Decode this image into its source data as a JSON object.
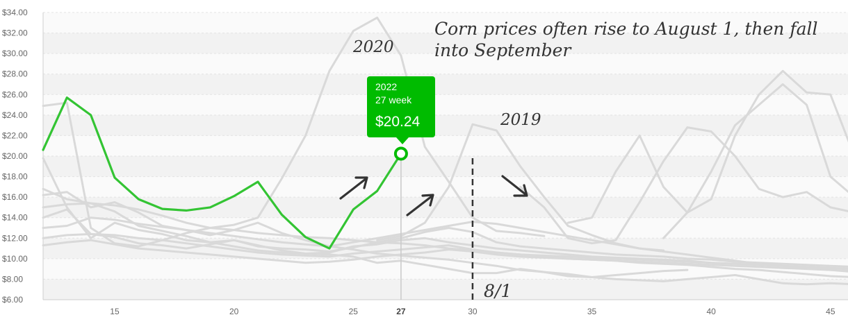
{
  "chart_data": {
    "type": "line",
    "x_ticks": [
      15,
      20,
      25,
      27,
      30,
      35,
      40,
      45
    ],
    "x_tick_bold": 27,
    "xlim": [
      12,
      45.5
    ],
    "ylim": [
      6,
      34
    ],
    "y_ticks": [
      "$6.00",
      "$8.00",
      "$10.00",
      "$12.00",
      "$14.00",
      "$16.00",
      "$18.00",
      "$20.00",
      "$22.00",
      "$24.00",
      "$26.00",
      "$28.00",
      "$30.00",
      "$32.00",
      "$34.00"
    ],
    "highlight_series": {
      "name": "2022",
      "color": "#33c433",
      "x": [
        12,
        13,
        14,
        15,
        16,
        17,
        18,
        19,
        20,
        21,
        22,
        23,
        24,
        25,
        26,
        27
      ],
      "values": [
        20.6,
        25.7,
        24.0,
        17.9,
        15.8,
        14.85,
        14.7,
        15.0,
        16.1,
        17.5,
        14.3,
        12.1,
        11.0,
        14.8,
        16.6,
        20.24
      ]
    },
    "background_series": [
      {
        "name": "2020",
        "x": [
          12,
          13,
          14,
          15,
          16,
          17,
          18,
          19,
          20,
          21,
          22,
          23,
          24,
          25,
          26,
          27,
          28,
          29,
          30,
          31,
          32,
          33
        ],
        "values": [
          24.9,
          25.2,
          13.0,
          11.5,
          11.2,
          11.8,
          12.5,
          13.0,
          13.3,
          14.0,
          17.8,
          22.0,
          28.3,
          32.2,
          33.5,
          29.8,
          20.9,
          17.5,
          14.0,
          12.7,
          12.5,
          12.2
        ]
      },
      {
        "name": "2019",
        "x": [
          26,
          27,
          28,
          29,
          30,
          31,
          32,
          33,
          34,
          35,
          36,
          37,
          38
        ],
        "values": [
          11.8,
          12.2,
          13.5,
          17.0,
          23.1,
          22.5,
          19.0,
          16.0,
          13.2,
          12.3,
          11.5,
          11.0,
          10.8
        ]
      },
      {
        "name": "",
        "x": [
          32,
          33,
          34,
          35,
          36,
          37,
          38,
          39,
          40,
          41,
          42,
          43,
          44,
          45,
          46
        ],
        "values": [
          17.0,
          15.0,
          12.0,
          11.5,
          11.8,
          15.5,
          19.5,
          22.8,
          22.4,
          20.0,
          16.8,
          16.0,
          16.5,
          15.0,
          14.5
        ]
      },
      {
        "name": "",
        "x": [
          38,
          39,
          40,
          41,
          42,
          43,
          44,
          45,
          46
        ],
        "values": [
          12.0,
          14.5,
          18.5,
          23.0,
          25.0,
          27.0,
          25.0,
          18.0,
          16.0
        ]
      },
      {
        "name": "",
        "x": [
          34,
          35,
          36,
          37,
          38,
          39,
          40,
          41,
          42,
          43,
          44,
          45,
          46
        ],
        "values": [
          13.5,
          14.0,
          18.5,
          22.0,
          17.0,
          14.5,
          15.8,
          22.0,
          26.0,
          28.3,
          26.2,
          26.0,
          20.0
        ]
      },
      {
        "name": "",
        "x": [
          12,
          13,
          14,
          15,
          16,
          17,
          18,
          19,
          20,
          21,
          22,
          23,
          24,
          25,
          26,
          27,
          28,
          29,
          30,
          31,
          32,
          33,
          34,
          35,
          36,
          37,
          38,
          39,
          40,
          41,
          42,
          43,
          44,
          45,
          46
        ],
        "values": [
          16.8,
          15.8,
          15.4,
          14.6,
          13.2,
          12.7,
          12.2,
          11.6,
          11.8,
          11.2,
          11.0,
          10.9,
          10.7,
          11.1,
          11.6,
          12.0,
          12.6,
          13.0,
          12.6,
          11.6,
          11.2,
          11.0,
          10.8,
          10.6,
          10.4,
          10.3,
          10.2,
          10.0,
          9.9,
          9.7,
          9.6,
          9.5,
          9.4,
          9.3,
          9.2
        ]
      },
      {
        "name": "",
        "x": [
          12,
          13,
          14,
          15,
          16,
          17,
          18,
          19,
          20,
          21,
          22,
          23,
          24,
          25,
          26,
          27,
          28,
          29,
          30,
          31,
          32,
          33,
          34,
          35,
          36,
          37,
          38,
          39,
          40,
          41,
          42,
          43,
          44,
          45,
          46
        ],
        "values": [
          14.0,
          14.8,
          12.4,
          12.1,
          11.5,
          11.3,
          11.0,
          11.4,
          11.8,
          11.3,
          10.8,
          10.5,
          10.6,
          11.2,
          11.4,
          11.8,
          12.0,
          11.6,
          11.3,
          11.0,
          10.8,
          10.6,
          10.4,
          10.2,
          10.1,
          10.0,
          9.9,
          9.8,
          9.6,
          9.5,
          9.4,
          9.3,
          9.2,
          9.1,
          9.0
        ]
      },
      {
        "name": "",
        "x": [
          12,
          13,
          14,
          15,
          16,
          17,
          18,
          19,
          20,
          21,
          22,
          23,
          24,
          25,
          26,
          27,
          28,
          29,
          30,
          31,
          32,
          33,
          34,
          35,
          36,
          37,
          38,
          39,
          40,
          41,
          42,
          43,
          44,
          45,
          46
        ],
        "values": [
          12.0,
          12.3,
          12.4,
          12.3,
          12.0,
          11.8,
          11.5,
          11.2,
          10.9,
          10.6,
          10.4,
          10.3,
          10.2,
          10.5,
          10.7,
          10.9,
          11.1,
          11.3,
          10.9,
          10.6,
          10.4,
          10.3,
          10.2,
          10.1,
          10.0,
          9.9,
          9.8,
          9.7,
          9.6,
          9.5,
          9.4,
          9.3,
          9.2,
          9.1,
          9.0
        ]
      },
      {
        "name": "",
        "x": [
          12,
          13,
          14,
          15,
          16,
          17,
          18,
          19,
          20,
          21,
          22,
          23,
          24,
          25,
          26,
          27,
          28,
          29,
          30,
          31,
          32,
          33,
          34,
          35,
          36,
          37,
          38,
          39,
          40,
          41,
          42,
          43,
          44,
          45,
          46
        ],
        "values": [
          11.3,
          11.6,
          11.8,
          11.4,
          11.0,
          10.8,
          10.6,
          10.4,
          10.2,
          10.0,
          9.8,
          9.6,
          9.7,
          9.9,
          10.2,
          10.4,
          10.6,
          10.9,
          10.7,
          10.4,
          10.2,
          10.1,
          10.0,
          9.9,
          9.8,
          9.7,
          9.6,
          9.5,
          9.4,
          9.3,
          9.2,
          9.1,
          9.0,
          8.9,
          8.8
        ]
      },
      {
        "name": "",
        "x": [
          12,
          13,
          14,
          15,
          16,
          17,
          18,
          19,
          20,
          21,
          22,
          23,
          24,
          25,
          26,
          27,
          28,
          29,
          30,
          31,
          32,
          33,
          34,
          35,
          36,
          37,
          38,
          39
        ],
        "values": [
          19.8,
          15.0,
          12.0,
          13.5,
          12.8,
          12.4,
          11.8,
          11.6,
          11.2,
          10.8,
          10.6,
          10.5,
          10.4,
          10.2,
          9.6,
          9.8,
          9.4,
          9.0,
          8.6,
          8.6,
          9.0,
          8.7,
          8.3,
          8.2,
          8.4,
          8.6,
          8.8,
          8.9
        ]
      },
      {
        "name": "",
        "x": [
          12,
          13,
          14,
          15,
          16,
          17,
          18,
          19,
          20,
          21,
          22,
          23,
          24,
          25,
          26,
          27,
          28,
          29,
          30,
          31,
          32,
          33,
          34,
          35,
          36,
          37,
          38,
          39,
          40,
          41,
          42,
          43,
          44,
          45,
          46
        ],
        "values": [
          15.0,
          15.3,
          15.4,
          15.2,
          14.8,
          14.2,
          13.5,
          13.0,
          12.8,
          12.5,
          12.3,
          12.1,
          12.0,
          11.8,
          11.6,
          11.5,
          11.3,
          11.0,
          10.8,
          10.6,
          10.4,
          10.2,
          10.0,
          9.9,
          9.8,
          9.6,
          9.5,
          9.4,
          9.2,
          9.0,
          8.9,
          8.7,
          8.5,
          8.3,
          8.2
        ]
      },
      {
        "name": "",
        "x": [
          12,
          13,
          14,
          15,
          16,
          17,
          18,
          19,
          20,
          21,
          22,
          23,
          24,
          25,
          26,
          27,
          28,
          29,
          30,
          31,
          32,
          33,
          34,
          35,
          36,
          37,
          38,
          39,
          40,
          41,
          42,
          43,
          44,
          45,
          46
        ],
        "values": [
          16.2,
          16.5,
          15.0,
          15.5,
          14.5,
          13.2,
          12.8,
          12.3,
          12.8,
          13.5,
          12.5,
          11.8,
          11.2,
          10.9,
          10.5,
          10.3,
          10.1,
          9.9,
          9.6,
          9.3,
          8.9,
          8.7,
          8.5,
          8.2,
          8.0,
          7.9,
          7.8,
          8.0,
          8.2,
          8.4,
          8.0,
          7.6,
          7.5,
          7.6,
          7.5
        ]
      },
      {
        "name": "",
        "x": [
          12,
          13,
          14,
          15,
          16,
          17,
          18,
          19,
          20,
          21,
          22,
          23,
          24,
          25,
          26,
          27,
          28,
          29,
          30,
          31,
          32,
          33,
          34,
          35,
          36,
          37,
          38,
          39,
          40,
          41,
          42,
          43,
          44,
          45,
          46
        ],
        "values": [
          13.0,
          13.2,
          14.0,
          13.8,
          13.4,
          13.1,
          12.8,
          12.5,
          12.2,
          11.9,
          11.6,
          11.4,
          11.2,
          11.6,
          12.0,
          12.4,
          12.8,
          13.2,
          13.6,
          13.4,
          13.0,
          12.6,
          12.2,
          11.8,
          11.4,
          11.0,
          10.7,
          10.4,
          10.1,
          9.8,
          9.5,
          9.3,
          9.1,
          8.9,
          8.7
        ]
      }
    ],
    "tooltip": {
      "title": "2022",
      "subtitle": "27 week",
      "value": "$20.24",
      "x": 27,
      "y": 20.24
    },
    "marker_line_x": 30,
    "annotations": {
      "headline_line1": "Corn prices often rise to August 1, then fall",
      "headline_line2": "into September",
      "label_2020": "2020",
      "label_2019": "2019",
      "label_8_1": "8/1"
    },
    "colors": {
      "highlight": "#33c433",
      "background": "#d9d9d9",
      "tooltip_bg": "#00bb00"
    },
    "grid": true
  }
}
